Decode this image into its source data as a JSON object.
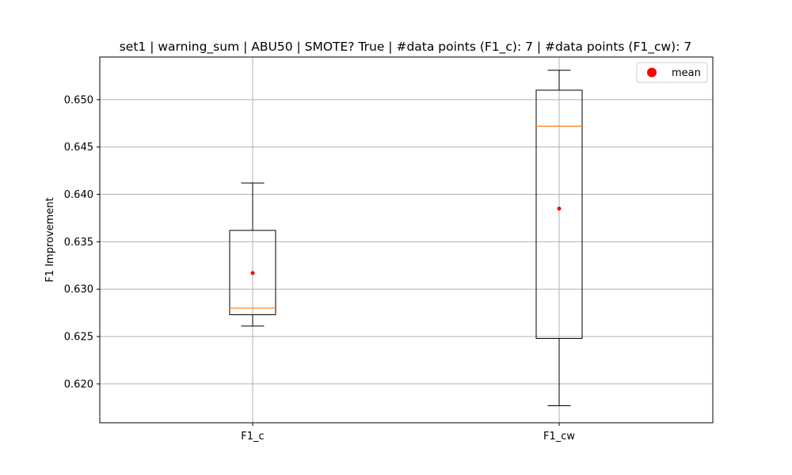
{
  "chart_data": {
    "type": "box",
    "title": "set1 | warning_sum | ABU50 | SMOTE? True | #data points (F1_c): 7 | #data points (F1_cw): 7",
    "xlabel": "",
    "ylabel": "F1 Improvement",
    "ylim": [
      0.6159,
      0.6545
    ],
    "yticks": [
      0.62,
      0.625,
      0.63,
      0.635,
      0.64,
      0.645,
      0.65
    ],
    "ytick_labels": [
      "0.620",
      "0.625",
      "0.630",
      "0.635",
      "0.640",
      "0.645",
      "0.650"
    ],
    "grid": true,
    "legend": {
      "position": "top-right",
      "entries": [
        {
          "label": "mean",
          "marker": "circle",
          "color": "#ff0000"
        }
      ]
    },
    "categories": [
      "F1_c",
      "F1_cw"
    ],
    "boxes": [
      {
        "category": "F1_c",
        "whisker_low": 0.6261,
        "q1": 0.6273,
        "median": 0.628,
        "q3": 0.6362,
        "whisker_high": 0.6412,
        "mean": 0.6317
      },
      {
        "category": "F1_cw",
        "whisker_low": 0.6177,
        "q1": 0.6248,
        "median": 0.6472,
        "q3": 0.651,
        "whisker_high": 0.6531,
        "mean": 0.6385
      }
    ],
    "colors": {
      "box": "#000000",
      "median": "#ff7f0e",
      "mean": "#ff0000",
      "grid": "#b0b0b0"
    }
  }
}
